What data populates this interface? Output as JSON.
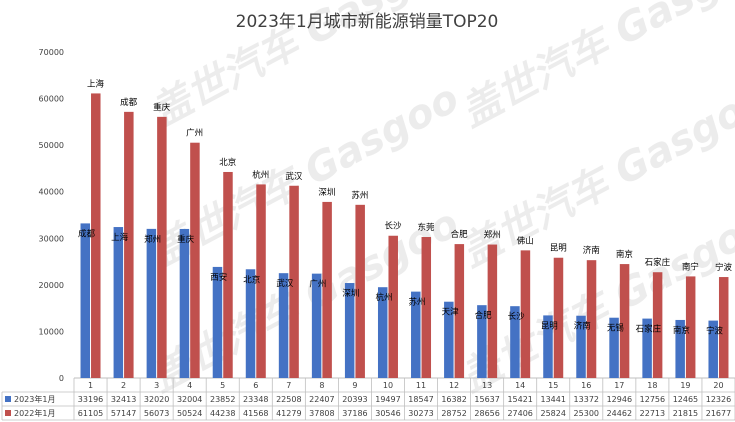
{
  "chart_data": {
    "type": "bar",
    "title": "2023年1月城市新能源销量TOP20",
    "watermark": "盖世汽车 Gasgoo",
    "categories": [
      "1",
      "2",
      "3",
      "4",
      "5",
      "6",
      "7",
      "8",
      "9",
      "10",
      "11",
      "12",
      "13",
      "14",
      "15",
      "16",
      "17",
      "18",
      "19",
      "20"
    ],
    "ylim": [
      0,
      70000
    ],
    "yticks": [
      0,
      10000,
      20000,
      30000,
      40000,
      50000,
      60000,
      70000
    ],
    "grid": false,
    "legend": "bottom-table",
    "colors": {
      "s2023": "#4472C4",
      "s2022": "#C0504D"
    },
    "series": [
      {
        "name": "2023年1月",
        "values": [
          33196,
          32413,
          32020,
          32004,
          23852,
          23348,
          22508,
          22407,
          20393,
          19497,
          18547,
          16382,
          15637,
          15421,
          13441,
          13372,
          12946,
          12756,
          12465,
          12326
        ],
        "cities": [
          "成都",
          "上海",
          "郑州",
          "重庆",
          "西安",
          "北京",
          "武汉",
          "广州",
          "深圳",
          "杭州",
          "苏州",
          "天津",
          "合肥",
          "长沙",
          "昆明",
          "济南",
          "无锡",
          "石家庄",
          "南京",
          "宁波"
        ]
      },
      {
        "name": "2022年1月",
        "values": [
          61105,
          57147,
          56073,
          50524,
          44238,
          41568,
          41279,
          37808,
          37186,
          30546,
          30273,
          28752,
          28656,
          27406,
          25824,
          25300,
          24462,
          22713,
          21815,
          21677
        ],
        "cities": [
          "上海",
          "成都",
          "重庆",
          "广州",
          "北京",
          "杭州",
          "武汉",
          "深圳",
          "苏州",
          "长沙",
          "东莞",
          "合肥",
          "郑州",
          "佛山",
          "昆明",
          "济南",
          "南京",
          "石家庄",
          "南宁",
          "宁波"
        ]
      }
    ]
  }
}
